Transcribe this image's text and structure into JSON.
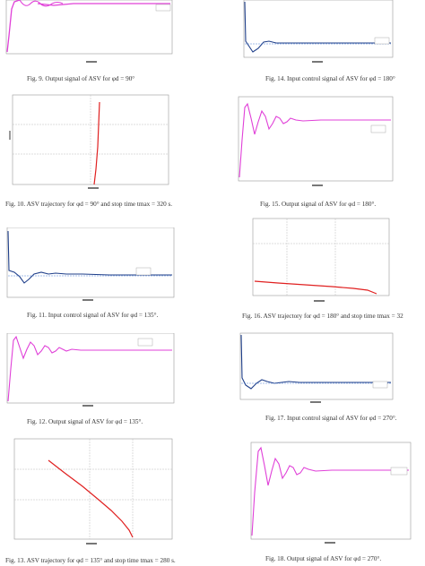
{
  "captions": {
    "fig9": "Fig. 9. Output signal of ASV for φd = 90°",
    "fig10": "Fig. 10. ASV trajectory for φd = 90° and stop time tmax = 320 s.",
    "fig11": "Fig. 11. Input control signal of ASV for φd = 135°.",
    "fig12": "Fig. 12. Output signal of ASV for φd = 135°.",
    "fig13": "Fig. 13. ASV trajectory for φd = 135° and stop time tmax = 280 s.",
    "fig14": "Fig. 14. Input control signal of ASV for φd = 180°",
    "fig15": "Fig. 15. Output signal of ASV for φd = 180°.",
    "fig16": "Fig. 16. ASV trajectory for φd = 180° and stop time tmax = 32",
    "fig17": "Fig. 17. Input control signal of ASV for φd = 270°.",
    "fig18": "Fig. 18. Output signal of ASV for φd = 270°."
  },
  "colors": {
    "signal": "#e040d8",
    "reference": "#4a7fd4",
    "trajectory": "#e02020",
    "control": "#1f3f8a",
    "grid": "#bcbcbc",
    "axis": "#9a9a9a"
  },
  "chart_data": [
    {
      "id": "fig9",
      "type": "line",
      "kind": "output"
    },
    {
      "id": "fig10",
      "type": "line",
      "kind": "trajectory-90"
    },
    {
      "id": "fig11",
      "type": "line",
      "kind": "control"
    },
    {
      "id": "fig12",
      "type": "line",
      "kind": "output"
    },
    {
      "id": "fig13",
      "type": "line",
      "kind": "trajectory-135"
    },
    {
      "id": "fig14",
      "type": "line",
      "kind": "control"
    },
    {
      "id": "fig15",
      "type": "line",
      "kind": "output"
    },
    {
      "id": "fig16",
      "type": "line",
      "kind": "trajectory-180"
    },
    {
      "id": "fig17",
      "type": "line",
      "kind": "control"
    },
    {
      "id": "fig18",
      "type": "line",
      "kind": "output"
    }
  ]
}
